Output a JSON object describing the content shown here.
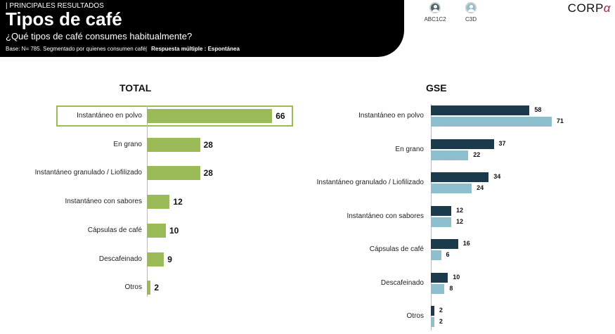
{
  "header": {
    "kicker": "| PRINCIPALES RESULTADOS",
    "title": "Tipos de café",
    "question": "¿Qué tipos de café consumes habitualmente?",
    "base": "Base: N= 785. Segmentado por quienes consumen café|",
    "response_type": "Respuesta múltiple : Espontánea"
  },
  "legend": [
    {
      "label": "ABC1C2",
      "color": "#1B3A4B",
      "icon": "person-icon"
    },
    {
      "label": "C3D",
      "color": "#8DBFCF",
      "icon": "person-icon"
    }
  ],
  "logo": {
    "text": "CORP",
    "accent": "α"
  },
  "chart_data": [
    {
      "type": "bar",
      "orientation": "horizontal",
      "title": "TOTAL",
      "categories": [
        "Instantáneo en polvo",
        "En grano",
        "Instantáneo granulado / Liofilizado",
        "Instantáneo con sabores",
        "Cápsulas de café",
        "Descafeinado",
        "Otros"
      ],
      "values": [
        66,
        28,
        28,
        12,
        10,
        9,
        2
      ],
      "color": "#9BBB59",
      "highlighted": "Instantáneo en polvo"
    },
    {
      "type": "bar",
      "orientation": "horizontal",
      "title": "GSE",
      "categories": [
        "Instantáneo en polvo",
        "En grano",
        "Instantáneo granulado / Liofilizado",
        "Instantáneo con sabores",
        "Cápsulas de café",
        "Descafeinado",
        "Otros"
      ],
      "series": [
        {
          "name": "ABC1C2",
          "values": [
            58,
            37,
            34,
            12,
            16,
            10,
            2
          ],
          "color": "#1B3A4B"
        },
        {
          "name": "C3D",
          "values": [
            71,
            22,
            24,
            12,
            6,
            8,
            2
          ],
          "color": "#8DBFCF"
        }
      ]
    }
  ]
}
